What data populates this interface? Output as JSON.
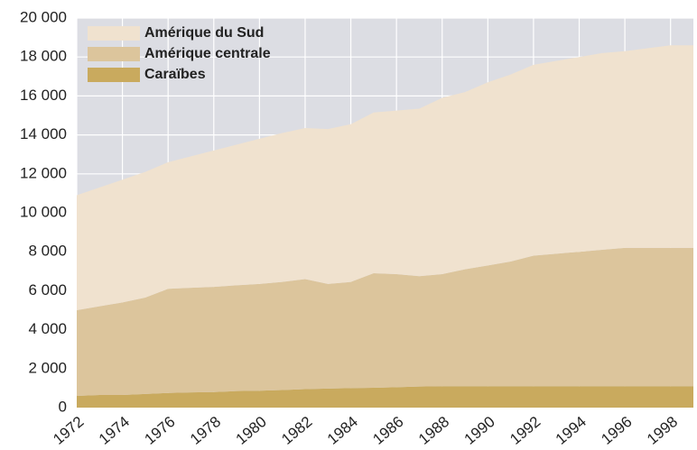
{
  "chart_data": {
    "type": "stacked_area",
    "x": [
      1972,
      1973,
      1974,
      1975,
      1976,
      1977,
      1978,
      1979,
      1980,
      1981,
      1982,
      1983,
      1984,
      1985,
      1986,
      1987,
      1988,
      1989,
      1990,
      1991,
      1992,
      1993,
      1994,
      1995,
      1996,
      1997,
      1998,
      1999
    ],
    "series": [
      {
        "name": "Caraïbes",
        "color": "#c9aa5e",
        "values": [
          600,
          650,
          650,
          700,
          750,
          780,
          800,
          850,
          870,
          900,
          950,
          980,
          1000,
          1020,
          1050,
          1080,
          1100,
          1100,
          1100,
          1100,
          1100,
          1100,
          1100,
          1100,
          1100,
          1100,
          1100,
          1100
        ]
      },
      {
        "name": "Amérique centrale",
        "color": "#dcc59c",
        "values": [
          4400,
          4550,
          4750,
          4950,
          5350,
          5370,
          5400,
          5430,
          5480,
          5550,
          5650,
          5370,
          5450,
          5880,
          5800,
          5670,
          5750,
          6000,
          6200,
          6400,
          6700,
          6800,
          6900,
          7000,
          7100,
          7100,
          7100,
          7100
        ]
      },
      {
        "name": "Amérique du Sud",
        "color": "#f0e2cf",
        "values": [
          5900,
          6100,
          6300,
          6450,
          6500,
          6750,
          7000,
          7220,
          7450,
          7650,
          7750,
          7950,
          8100,
          8250,
          8400,
          8600,
          9050,
          9100,
          9400,
          9600,
          9800,
          9900,
          10000,
          10100,
          10100,
          10250,
          10400,
          10400
        ]
      }
    ],
    "xlim": [
      1972,
      1999
    ],
    "xticks": [
      1972,
      1974,
      1976,
      1978,
      1980,
      1982,
      1984,
      1986,
      1988,
      1990,
      1992,
      1994,
      1996,
      1998
    ],
    "ylim": [
      0,
      20000
    ],
    "yticks": [
      0,
      {
        "value": 2000,
        "label": "2 000"
      },
      {
        "value": 4000,
        "label": "4 000"
      },
      {
        "value": 6000,
        "label": "6 000"
      },
      {
        "value": 8000,
        "label": "8 000"
      },
      {
        "value": 10000,
        "label": "10 000"
      },
      {
        "value": 12000,
        "label": "12 000"
      },
      {
        "value": 14000,
        "label": "14 000"
      },
      {
        "value": 16000,
        "label": "16 000"
      },
      {
        "value": 18000,
        "label": "18 000"
      },
      {
        "value": 20000,
        "label": "20 000"
      }
    ],
    "grid": true,
    "legend": "upper left",
    "background": "#dcdde3"
  }
}
